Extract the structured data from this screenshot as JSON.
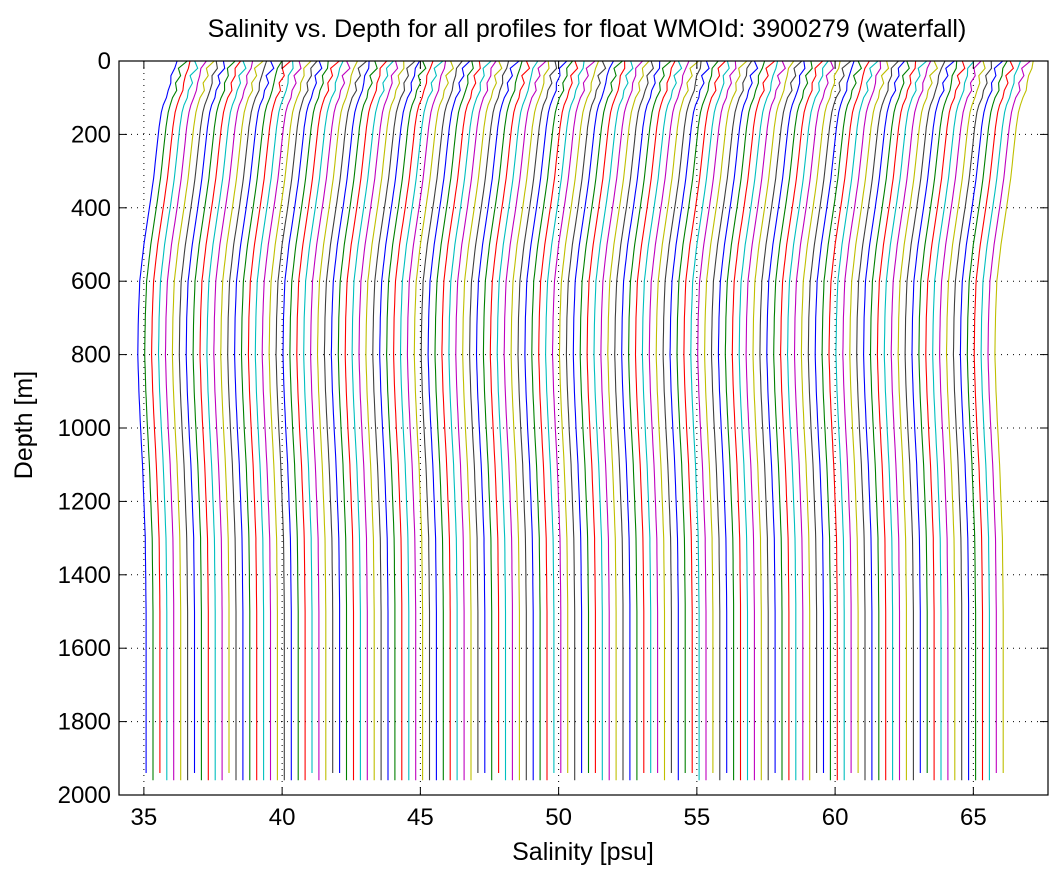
{
  "chart_data": {
    "type": "line",
    "title": "Salinity vs. Depth for all profiles for float WMOId: 3900279 (waterfall)",
    "xlabel": "Salinity [psu]",
    "ylabel": "Depth [m]",
    "xlim": [
      34.1,
      67.7
    ],
    "ylim": [
      0,
      2000
    ],
    "y_reversed": true,
    "xticks": [
      35,
      40,
      45,
      50,
      55,
      60,
      65
    ],
    "yticks": [
      0,
      200,
      400,
      600,
      800,
      1000,
      1200,
      1400,
      1600,
      1800,
      2000
    ],
    "grid": "dotted",
    "waterfall_offset_psu_per_profile": 0.25,
    "profile_count": 125,
    "representative_profile": {
      "depth": [
        0,
        40,
        80,
        100,
        130,
        180,
        250,
        320,
        400,
        500,
        600,
        700,
        800,
        900,
        1000,
        1100,
        1200,
        1300,
        1500,
        1700,
        1980
      ],
      "salinity": [
        36.2,
        36.0,
        35.9,
        35.8,
        35.65,
        35.55,
        35.45,
        35.35,
        35.2,
        35.0,
        34.85,
        34.8,
        34.78,
        34.82,
        34.88,
        34.95,
        35.0,
        35.05,
        35.08,
        35.08,
        35.08
      ]
    },
    "series_colors": [
      "#0000ff",
      "#008000",
      "#ff0000",
      "#00bfbf",
      "#bf00bf",
      "#bfbf00",
      "#404040"
    ]
  }
}
